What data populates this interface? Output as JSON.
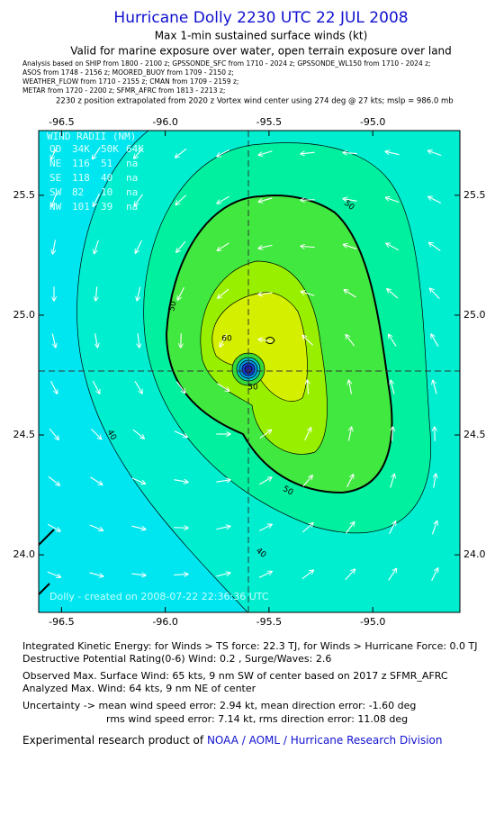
{
  "header": {
    "title": "Hurricane Dolly 2230 UTC 22 JUL 2008",
    "subtitle": "Max 1-min sustained surface winds (kt)",
    "valid": "Valid for marine exposure over water, open terrain exposure over land",
    "analysis_lines": [
      "Analysis based on  SHIP from 1800 - 2100 z;  GPSSONDE_SFC from 1710 - 2024 z;  GPSSONDE_WL150 from 1710 - 2024 z;",
      "ASOS from 1748 - 2156 z;  MOORED_BUOY from 1709 - 2150 z;",
      "WEATHER_FLOW from 1710 - 2155 z;  CMAN from 1709 - 2159 z;",
      "METAR from 1720 - 2200 z;  SFMR_AFRC from 1813 - 2213 z;"
    ],
    "position_note": "2230 z position extrapolated from 2020 z Vortex wind center using 274 deg @ 27 kts; mslp = 986.0 mb"
  },
  "map": {
    "xlim": [
      -96.61,
      -94.58
    ],
    "ylim": [
      23.76,
      25.77
    ],
    "xticks": [
      -96.5,
      {
        "value": -96.0,
        "label": "-96.0"
      },
      -95.5,
      {
        "value": -95.0,
        "label": "-95.0"
      }
    ],
    "yticks": [
      {
        "value": 24.0,
        "label": "24.0"
      },
      24.5,
      {
        "value": 25.0,
        "label": "25.0"
      },
      25.5
    ],
    "center": [
      -95.6,
      24.77
    ],
    "wind_radii": {
      "title": "WIND RADII (NM)",
      "rows": [
        [
          "QD",
          "34K",
          "50K",
          "64K"
        ],
        [
          "NE",
          "116",
          "51",
          "na"
        ],
        [
          "SE",
          "118",
          "40",
          "na"
        ],
        [
          "SW",
          "82",
          "10",
          "na"
        ],
        [
          "NW",
          "101",
          "39",
          "na"
        ]
      ]
    },
    "contour_labels": [
      "50",
      "50",
      "60",
      "50",
      "40",
      "50",
      "40"
    ],
    "watermark": "Dolly - created on 2008-07-22 22:36:36 UTC"
  },
  "footer": {
    "lines": [
      "Integrated Kinetic Energy:  for Winds > TS force: 22.3 TJ,  for Winds > Hurricane Force: 0.0 TJ",
      "Destructive Potential Rating(0-6)   Wind: 0.2 , Surge/Waves: 2.6",
      "Observed Max. Surface Wind: 65 kts, 9 nm SW of center based on 2017 z SFMR_AFRC",
      "Analyzed Max. Wind: 64 kts, 9 nm NE of center",
      "Uncertainty -> mean wind speed error: 2.94 kt,   mean direction error:  -1.60 deg",
      "rms wind speed error: 7.14 kt,   rms direction error: 11.08 deg"
    ],
    "credit_prefix": "Experimental research product of",
    "credit_link": "NOAA / AOML / Hurricane Research Division"
  }
}
